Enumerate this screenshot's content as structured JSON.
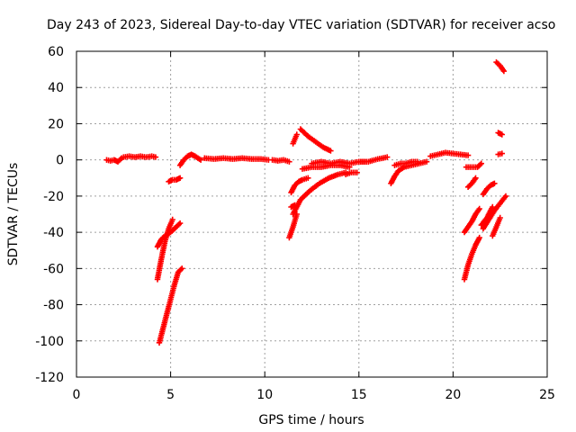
{
  "chart_data": {
    "type": "scatter",
    "title": "Day 243 of 2023, Sidereal Day-to-day VTEC variation (SDTVAR) for receiver acso",
    "xlabel": "GPS time / hours",
    "ylabel": "SDTVAR / TECUs",
    "xlim": [
      0,
      25
    ],
    "ylim": [
      -120,
      60
    ],
    "xticks": [
      "0",
      "5",
      "10",
      "15",
      "20",
      "25"
    ],
    "yticks": [
      "-120",
      "-100",
      "-80",
      "-60",
      "-40",
      "-20",
      "0",
      "20",
      "40",
      "60"
    ],
    "grid": true,
    "marker": "+",
    "color": "#ff0000",
    "series": [
      {
        "x": [
          1.6,
          1.8,
          2.0,
          2.2,
          2.4
        ],
        "y": [
          0.0,
          -0.5,
          0.0,
          -1.0,
          1.0
        ]
      },
      {
        "x": [
          2.5,
          2.8,
          3.1,
          3.4,
          3.7,
          4.0,
          4.2
        ],
        "y": [
          1.5,
          2.0,
          1.5,
          2.0,
          1.5,
          2.0,
          1.5
        ]
      },
      {
        "x": [
          4.3,
          4.5,
          4.7,
          4.9,
          5.1
        ],
        "y": [
          -66.0,
          -55.0,
          -45.0,
          -38.0,
          -33.0
        ]
      },
      {
        "x": [
          4.3,
          4.5,
          4.7,
          5.0,
          5.3,
          5.5
        ],
        "y": [
          -48.0,
          -44.0,
          -42.0,
          -40.0,
          -37.0,
          -35.0
        ]
      },
      {
        "x": [
          4.4,
          4.6,
          4.8,
          5.0,
          5.2,
          5.4,
          5.6
        ],
        "y": [
          -101.0,
          -93.0,
          -85.0,
          -77.0,
          -69.0,
          -62.0,
          -60.0
        ]
      },
      {
        "x": [
          4.9,
          5.1,
          5.3,
          5.5
        ],
        "y": [
          -12.0,
          -11.0,
          -11.0,
          -10.0
        ]
      },
      {
        "x": [
          5.5,
          5.7,
          5.9,
          6.1,
          6.3,
          6.6
        ],
        "y": [
          -3.0,
          0.0,
          2.0,
          3.0,
          2.0,
          0.0
        ]
      },
      {
        "x": [
          6.8,
          7.3,
          7.8,
          8.3,
          8.8,
          9.3,
          9.8,
          10.2
        ],
        "y": [
          1.0,
          0.5,
          1.0,
          0.5,
          1.0,
          0.5,
          0.5,
          0.0
        ]
      },
      {
        "x": [
          10.4,
          10.7,
          11.0,
          11.3
        ],
        "y": [
          0.0,
          -0.5,
          0.0,
          -1.0
        ]
      },
      {
        "x": [
          11.3,
          11.5,
          11.7
        ],
        "y": [
          -43.0,
          -37.0,
          -30.0
        ]
      },
      {
        "x": [
          11.4,
          11.6,
          11.8,
          12.0,
          12.3
        ],
        "y": [
          -18.0,
          -14.0,
          -12.0,
          -11.0,
          -10.0
        ]
      },
      {
        "x": [
          11.4,
          11.6
        ],
        "y": [
          -26.0,
          -25.0
        ]
      },
      {
        "x": [
          11.5,
          11.7
        ],
        "y": [
          9.0,
          14.0
        ]
      },
      {
        "x": [
          11.9,
          12.3,
          12.7,
          13.1,
          13.5
        ],
        "y": [
          17.0,
          13.0,
          10.0,
          7.0,
          5.0
        ]
      },
      {
        "x": [
          11.5,
          11.9,
          12.4,
          12.9,
          13.4,
          13.9,
          14.3
        ],
        "y": [
          -30.0,
          -22.0,
          -17.0,
          -13.0,
          -10.0,
          -8.0,
          -7.0
        ]
      },
      {
        "x": [
          12.0,
          12.5,
          13.0,
          13.5,
          14.0,
          14.5
        ],
        "y": [
          -5.0,
          -4.0,
          -4.0,
          -3.0,
          -3.0,
          -4.0
        ]
      },
      {
        "x": [
          12.5,
          13.0,
          13.5,
          14.0,
          14.5,
          15.0,
          15.5
        ],
        "y": [
          -2.0,
          -1.0,
          -2.0,
          -1.0,
          -2.0,
          -1.0,
          -1.0
        ]
      },
      {
        "x": [
          14.3,
          14.6,
          14.9
        ],
        "y": [
          -8.0,
          -7.0,
          -7.0
        ]
      },
      {
        "x": [
          15.0,
          15.5,
          16.0,
          16.5
        ],
        "y": [
          -1.0,
          -1.0,
          0.5,
          1.5
        ]
      },
      {
        "x": [
          16.7,
          16.9,
          17.1,
          17.4,
          17.8,
          18.2,
          18.6
        ],
        "y": [
          -13.0,
          -9.0,
          -6.0,
          -4.0,
          -3.0,
          -2.0,
          -1.0
        ]
      },
      {
        "x": [
          16.9,
          17.2,
          17.5,
          17.8,
          18.1
        ],
        "y": [
          -3.0,
          -2.0,
          -2.0,
          -1.0,
          -1.0
        ]
      },
      {
        "x": [
          18.8,
          19.2,
          19.6,
          20.0,
          20.4,
          20.8
        ],
        "y": [
          2.0,
          3.0,
          4.0,
          3.5,
          3.0,
          2.5
        ]
      },
      {
        "x": [
          20.6,
          20.8,
          21.0,
          21.2,
          21.4
        ],
        "y": [
          -66.0,
          -58.0,
          -52.0,
          -47.0,
          -43.0
        ]
      },
      {
        "x": [
          20.6,
          20.8,
          21.0,
          21.2,
          21.4
        ],
        "y": [
          -40.0,
          -37.0,
          -34.0,
          -30.0,
          -27.0
        ]
      },
      {
        "x": [
          20.8,
          21.0,
          21.2
        ],
        "y": [
          -15.0,
          -13.0,
          -10.0
        ]
      },
      {
        "x": [
          20.7,
          21.0,
          21.3,
          21.5
        ],
        "y": [
          -4.0,
          -4.0,
          -4.0,
          -2.0
        ]
      },
      {
        "x": [
          21.5,
          21.8,
          22.1
        ],
        "y": [
          -36.0,
          -32.0,
          -26.0
        ]
      },
      {
        "x": [
          21.6,
          21.8,
          22.0,
          22.2
        ],
        "y": [
          -19.0,
          -16.0,
          -14.0,
          -13.0
        ]
      },
      {
        "x": [
          21.6,
          21.9,
          22.2,
          22.5,
          22.8
        ],
        "y": [
          -38.0,
          -33.0,
          -28.0,
          -24.0,
          -20.0
        ]
      },
      {
        "x": [
          22.1,
          22.3,
          22.5
        ],
        "y": [
          -42.0,
          -37.0,
          -32.0
        ]
      },
      {
        "x": [
          22.3,
          22.5,
          22.7
        ],
        "y": [
          54.0,
          52.0,
          49.0
        ]
      },
      {
        "x": [
          22.4,
          22.6
        ],
        "y": [
          15.0,
          14.0
        ]
      },
      {
        "x": [
          22.4,
          22.6
        ],
        "y": [
          3.0,
          3.5
        ]
      }
    ]
  }
}
